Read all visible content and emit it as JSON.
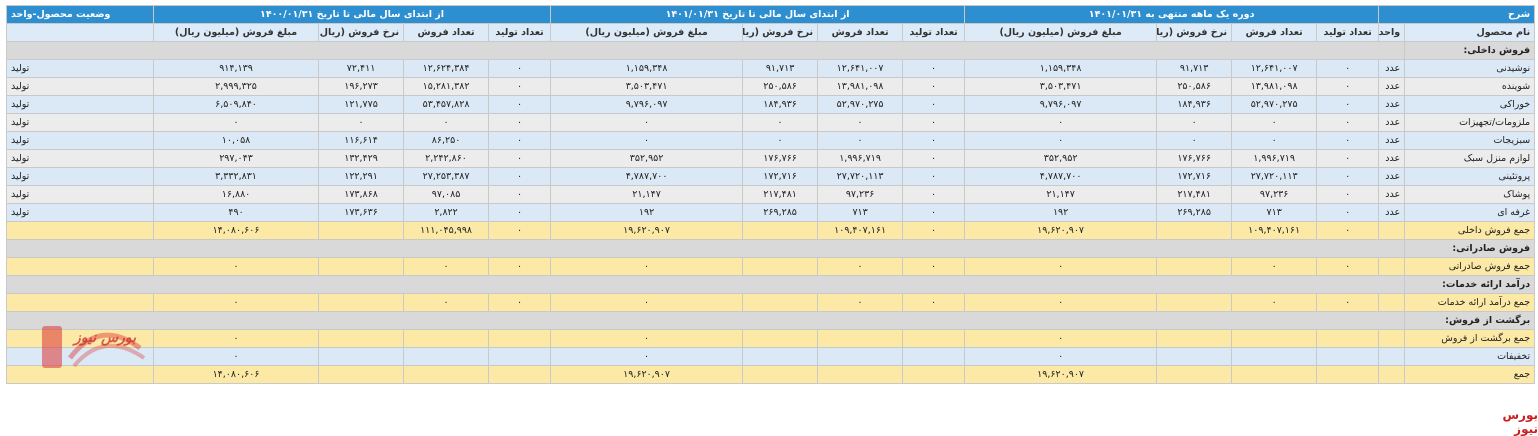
{
  "headers": {
    "desc": "شرح",
    "period1": "دوره یک ماهه منتهی به ۱۴۰۱/۰۱/۳۱",
    "period2": "از ابتدای سال مالی تا تاریخ ۱۴۰۱/۰۱/۳۱",
    "period3": "از ابتدای سال مالی تا تاریخ ۱۴۰۰/۰۱/۳۱",
    "status": "وضعیت محصول-واحد",
    "product": "نام محصول",
    "unit": "واحد",
    "prod_count": "تعداد تولید",
    "sales_count": "تعداد فروش",
    "sales_rate": "نرخ فروش (ریال)",
    "sales_amount": "مبلغ فروش (میلیون ریال)"
  },
  "rows": [
    {
      "kind": "sec",
      "label": "فروش داخلی:"
    },
    {
      "kind": "blue",
      "label": "نوشیدنی",
      "unit": "عدد",
      "v": [
        "۰",
        "۱۲,۶۴۱,۰۰۷",
        "۹۱,۷۱۳",
        "۱,۱۵۹,۳۴۸",
        "۰",
        "۱۲,۶۴۱,۰۰۷",
        "۹۱,۷۱۳",
        "۱,۱۵۹,۳۴۸",
        "۰",
        "۱۲,۶۲۴,۳۸۴",
        "۷۲,۴۱۱",
        "۹۱۴,۱۳۹"
      ],
      "status": "تولید"
    },
    {
      "kind": "grey",
      "label": "شوینده",
      "unit": "عدد",
      "v": [
        "۰",
        "۱۳,۹۸۱,۰۹۸",
        "۲۵۰,۵۸۶",
        "۳,۵۰۳,۴۷۱",
        "۰",
        "۱۳,۹۸۱,۰۹۸",
        "۲۵۰,۵۸۶",
        "۳,۵۰۳,۴۷۱",
        "۰",
        "۱۵,۲۸۱,۳۸۲",
        "۱۹۶,۲۷۳",
        "۲,۹۹۹,۳۲۵"
      ],
      "status": "تولید"
    },
    {
      "kind": "blue",
      "label": "خوراکی",
      "unit": "عدد",
      "v": [
        "۰",
        "۵۲,۹۷۰,۲۷۵",
        "۱۸۴,۹۳۶",
        "۹,۷۹۶,۰۹۷",
        "۰",
        "۵۲,۹۷۰,۲۷۵",
        "۱۸۴,۹۳۶",
        "۹,۷۹۶,۰۹۷",
        "۰",
        "۵۳,۴۵۷,۸۲۸",
        "۱۲۱,۷۷۵",
        "۶,۵۰۹,۸۴۰"
      ],
      "status": "تولید"
    },
    {
      "kind": "grey",
      "label": "ملزومات/تجهیزات",
      "unit": "عدد",
      "v": [
        "۰",
        "۰",
        "۰",
        "۰",
        "۰",
        "۰",
        "۰",
        "۰",
        "۰",
        "۰",
        "۰",
        "۰"
      ],
      "status": "تولید"
    },
    {
      "kind": "blue",
      "label": "سبزیجات",
      "unit": "عدد",
      "v": [
        "۰",
        "۰",
        "۰",
        "۰",
        "۰",
        "۰",
        "۰",
        "۰",
        "۰",
        "۸۶,۲۵۰",
        "۱۱۶,۶۱۴",
        "۱۰,۰۵۸"
      ],
      "status": "تولید"
    },
    {
      "kind": "grey",
      "label": "لوازم منزل سبک",
      "unit": "عدد",
      "v": [
        "۰",
        "۱,۹۹۶,۷۱۹",
        "۱۷۶,۷۶۶",
        "۳۵۲,۹۵۲",
        "۰",
        "۱,۹۹۶,۷۱۹",
        "۱۷۶,۷۶۶",
        "۳۵۲,۹۵۲",
        "۰",
        "۲,۲۴۲,۸۶۰",
        "۱۳۲,۴۲۹",
        "۲۹۷,۰۴۳"
      ],
      "status": "تولید"
    },
    {
      "kind": "blue",
      "label": "پروتئینی",
      "unit": "عدد",
      "v": [
        "۰",
        "۲۷,۷۲۰,۱۱۳",
        "۱۷۲,۷۱۶",
        "۴,۷۸۷,۷۰۰",
        "۰",
        "۲۷,۷۲۰,۱۱۳",
        "۱۷۲,۷۱۶",
        "۴,۷۸۷,۷۰۰",
        "۰",
        "۲۷,۲۵۳,۳۸۷",
        "۱۲۲,۲۹۱",
        "۳,۳۳۲,۸۳۱"
      ],
      "status": "تولید"
    },
    {
      "kind": "grey",
      "label": "پوشاک",
      "unit": "عدد",
      "v": [
        "۰",
        "۹۷,۲۳۶",
        "۲۱۷,۴۸۱",
        "۲۱,۱۴۷",
        "۰",
        "۹۷,۲۳۶",
        "۲۱۷,۴۸۱",
        "۲۱,۱۴۷",
        "۰",
        "۹۷,۰۸۵",
        "۱۷۳,۸۶۸",
        "۱۶,۸۸۰"
      ],
      "status": "تولید"
    },
    {
      "kind": "blue",
      "label": "غرفه ای",
      "unit": "عدد",
      "v": [
        "۰",
        "۷۱۳",
        "۲۶۹,۲۸۵",
        "۱۹۲",
        "۰",
        "۷۱۳",
        "۲۶۹,۲۸۵",
        "۱۹۲",
        "۰",
        "۲,۸۲۲",
        "۱۷۳,۶۳۶",
        "۴۹۰"
      ],
      "status": "تولید"
    },
    {
      "kind": "yellow",
      "label": "جمع فروش داخلی",
      "unit": "",
      "v": [
        "۰",
        "۱۰۹,۴۰۷,۱۶۱",
        "",
        "۱۹,۶۲۰,۹۰۷",
        "۰",
        "۱۰۹,۴۰۷,۱۶۱",
        "",
        "۱۹,۶۲۰,۹۰۷",
        "۰",
        "۱۱۱,۰۴۵,۹۹۸",
        "",
        "۱۴,۰۸۰,۶۰۶"
      ],
      "status": ""
    },
    {
      "kind": "sec",
      "label": "فروش صادراتی:"
    },
    {
      "kind": "yellow",
      "label": "جمع فروش صادراتی",
      "unit": "",
      "v": [
        "۰",
        "۰",
        "",
        "۰",
        "۰",
        "۰",
        "",
        "۰",
        "۰",
        "۰",
        "",
        "۰"
      ],
      "status": ""
    },
    {
      "kind": "sec",
      "label": "درآمد ارائه خدمات:"
    },
    {
      "kind": "yellow",
      "label": "جمع درآمد ارائه خدمات",
      "unit": "",
      "v": [
        "۰",
        "۰",
        "",
        "۰",
        "۰",
        "۰",
        "",
        "۰",
        "۰",
        "۰",
        "",
        "۰"
      ],
      "status": ""
    },
    {
      "kind": "sec",
      "label": "برگشت از فروش:"
    },
    {
      "kind": "yellow",
      "label": "جمع برگشت از فروش",
      "unit": "",
      "v": [
        "",
        "",
        "",
        "۰",
        "",
        "",
        "",
        "۰",
        "",
        "",
        "",
        "۰"
      ],
      "status": ""
    },
    {
      "kind": "blue",
      "label": "تخفیفات",
      "unit": "",
      "v": [
        "",
        "",
        "",
        "۰",
        "",
        "",
        "",
        "۰",
        "",
        "",
        "",
        "۰"
      ],
      "status": ""
    },
    {
      "kind": "yellow",
      "label": "جمع",
      "unit": "",
      "v": [
        "",
        "",
        "",
        "۱۹,۶۲۰,۹۰۷",
        "",
        "",
        "",
        "۱۹,۶۲۰,۹۰۷",
        "",
        "",
        "",
        "۱۴,۰۸۰,۶۰۶"
      ],
      "status": ""
    }
  ],
  "logo_text": "بورس نیوز",
  "brand": "بورس نیوز",
  "colors": {
    "header": "#2e8fd0",
    "subheader": "#dcebf7",
    "section": "#d9d9d9",
    "row_blue": "#dbe8f5",
    "row_grey": "#ececec",
    "total": "#fde9a6",
    "brand": "#cc1e1e"
  }
}
